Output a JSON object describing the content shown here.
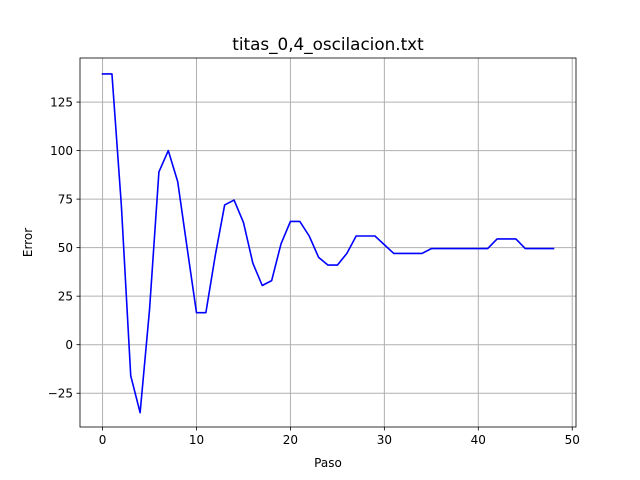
{
  "chart_data": {
    "type": "line",
    "title": "titas_0,4_oscilacion.txt",
    "xlabel": "Paso",
    "ylabel": "Error",
    "xlim": [
      -2.4,
      50.4
    ],
    "ylim": [
      -42.4,
      147.7
    ],
    "xticks": [
      0,
      10,
      20,
      30,
      40,
      50
    ],
    "yticks": [
      -25,
      0,
      25,
      50,
      75,
      100,
      125
    ],
    "grid": true,
    "series": [
      {
        "color": "#0000ff",
        "x": [
          0,
          1,
          2,
          3,
          4,
          5,
          6,
          7,
          8,
          9,
          10,
          11,
          12,
          13,
          14,
          15,
          16,
          17,
          18,
          19,
          20,
          21,
          22,
          23,
          24,
          25,
          26,
          27,
          28,
          29,
          30,
          31,
          32,
          33,
          34,
          35,
          36,
          37,
          38,
          39,
          40,
          41,
          42,
          43,
          44,
          45,
          46,
          47,
          48
        ],
        "y": [
          139.5,
          139.5,
          72,
          -16,
          -35,
          18,
          89,
          100,
          84,
          50,
          16.5,
          16.5,
          46,
          72,
          74.5,
          63,
          42,
          30.5,
          33,
          52,
          63.5,
          63.5,
          56,
          45,
          41,
          41,
          47,
          56,
          56,
          56,
          51.5,
          47,
          47,
          47,
          47,
          49.5,
          49.5,
          49.5,
          49.5,
          49.5,
          49.5,
          49.5,
          54.5,
          54.5,
          54.5,
          49.5,
          49.5,
          49.5,
          49.5
        ]
      }
    ]
  }
}
